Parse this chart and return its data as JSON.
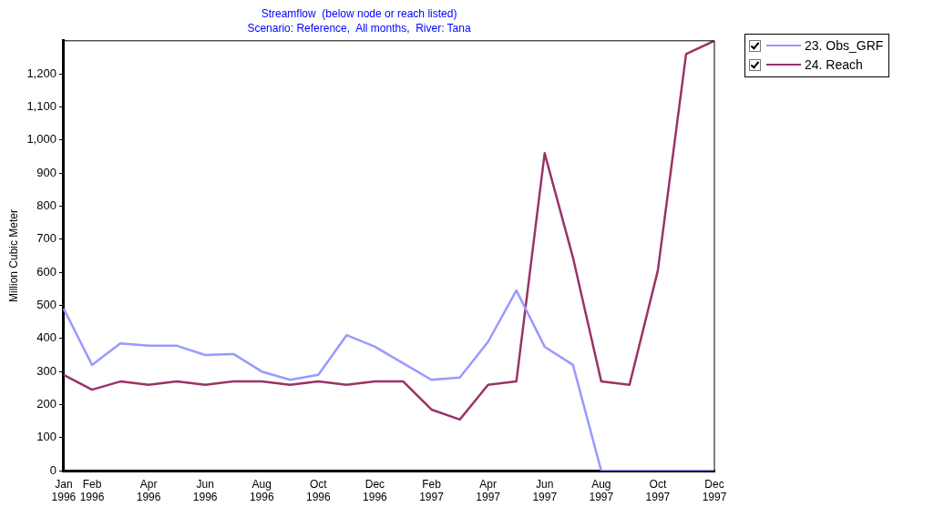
{
  "chart_data": {
    "type": "line",
    "title": "Streamflow  (below node or reach listed)",
    "subtitle": "Scenario: Reference,  All months,  River: Tana",
    "ylabel": "Million Cubic Meter",
    "categories": [
      "Jan 1996",
      "Feb 1996",
      null,
      "Apr 1996",
      null,
      "Jun 1996",
      null,
      "Aug 1996",
      null,
      "Oct 1996",
      null,
      "Dec 1996",
      null,
      "Feb 1997",
      null,
      "Apr 1997",
      null,
      "Jun 1997",
      null,
      "Aug 1997",
      null,
      "Oct 1997",
      null,
      "Dec 1997"
    ],
    "series": [
      {
        "name": "23. Obs_GRF",
        "color": "#9999ff",
        "values": [
          490,
          320,
          385,
          378,
          378,
          350,
          353,
          300,
          275,
          290,
          410,
          375,
          325,
          275,
          282,
          390,
          545,
          375,
          320,
          0,
          0,
          0,
          0,
          0
        ]
      },
      {
        "name": "24. Reach",
        "color": "#993366",
        "values": [
          290,
          245,
          270,
          260,
          270,
          260,
          270,
          270,
          260,
          270,
          260,
          270,
          270,
          185,
          155,
          260,
          270,
          960,
          645,
          270,
          260,
          605,
          1260,
          1300
        ]
      }
    ],
    "ylim": [
      0,
      1300
    ],
    "yticks": [
      0,
      100,
      200,
      300,
      400,
      500,
      600,
      700,
      800,
      900,
      {
        "value": 1000,
        "label": "1,000"
      },
      {
        "value": 1100,
        "label": "1,100"
      },
      {
        "value": 1200,
        "label": "1,200"
      }
    ],
    "grid": false,
    "legend": "top right",
    "marker": "none",
    "line_style": "solid"
  }
}
